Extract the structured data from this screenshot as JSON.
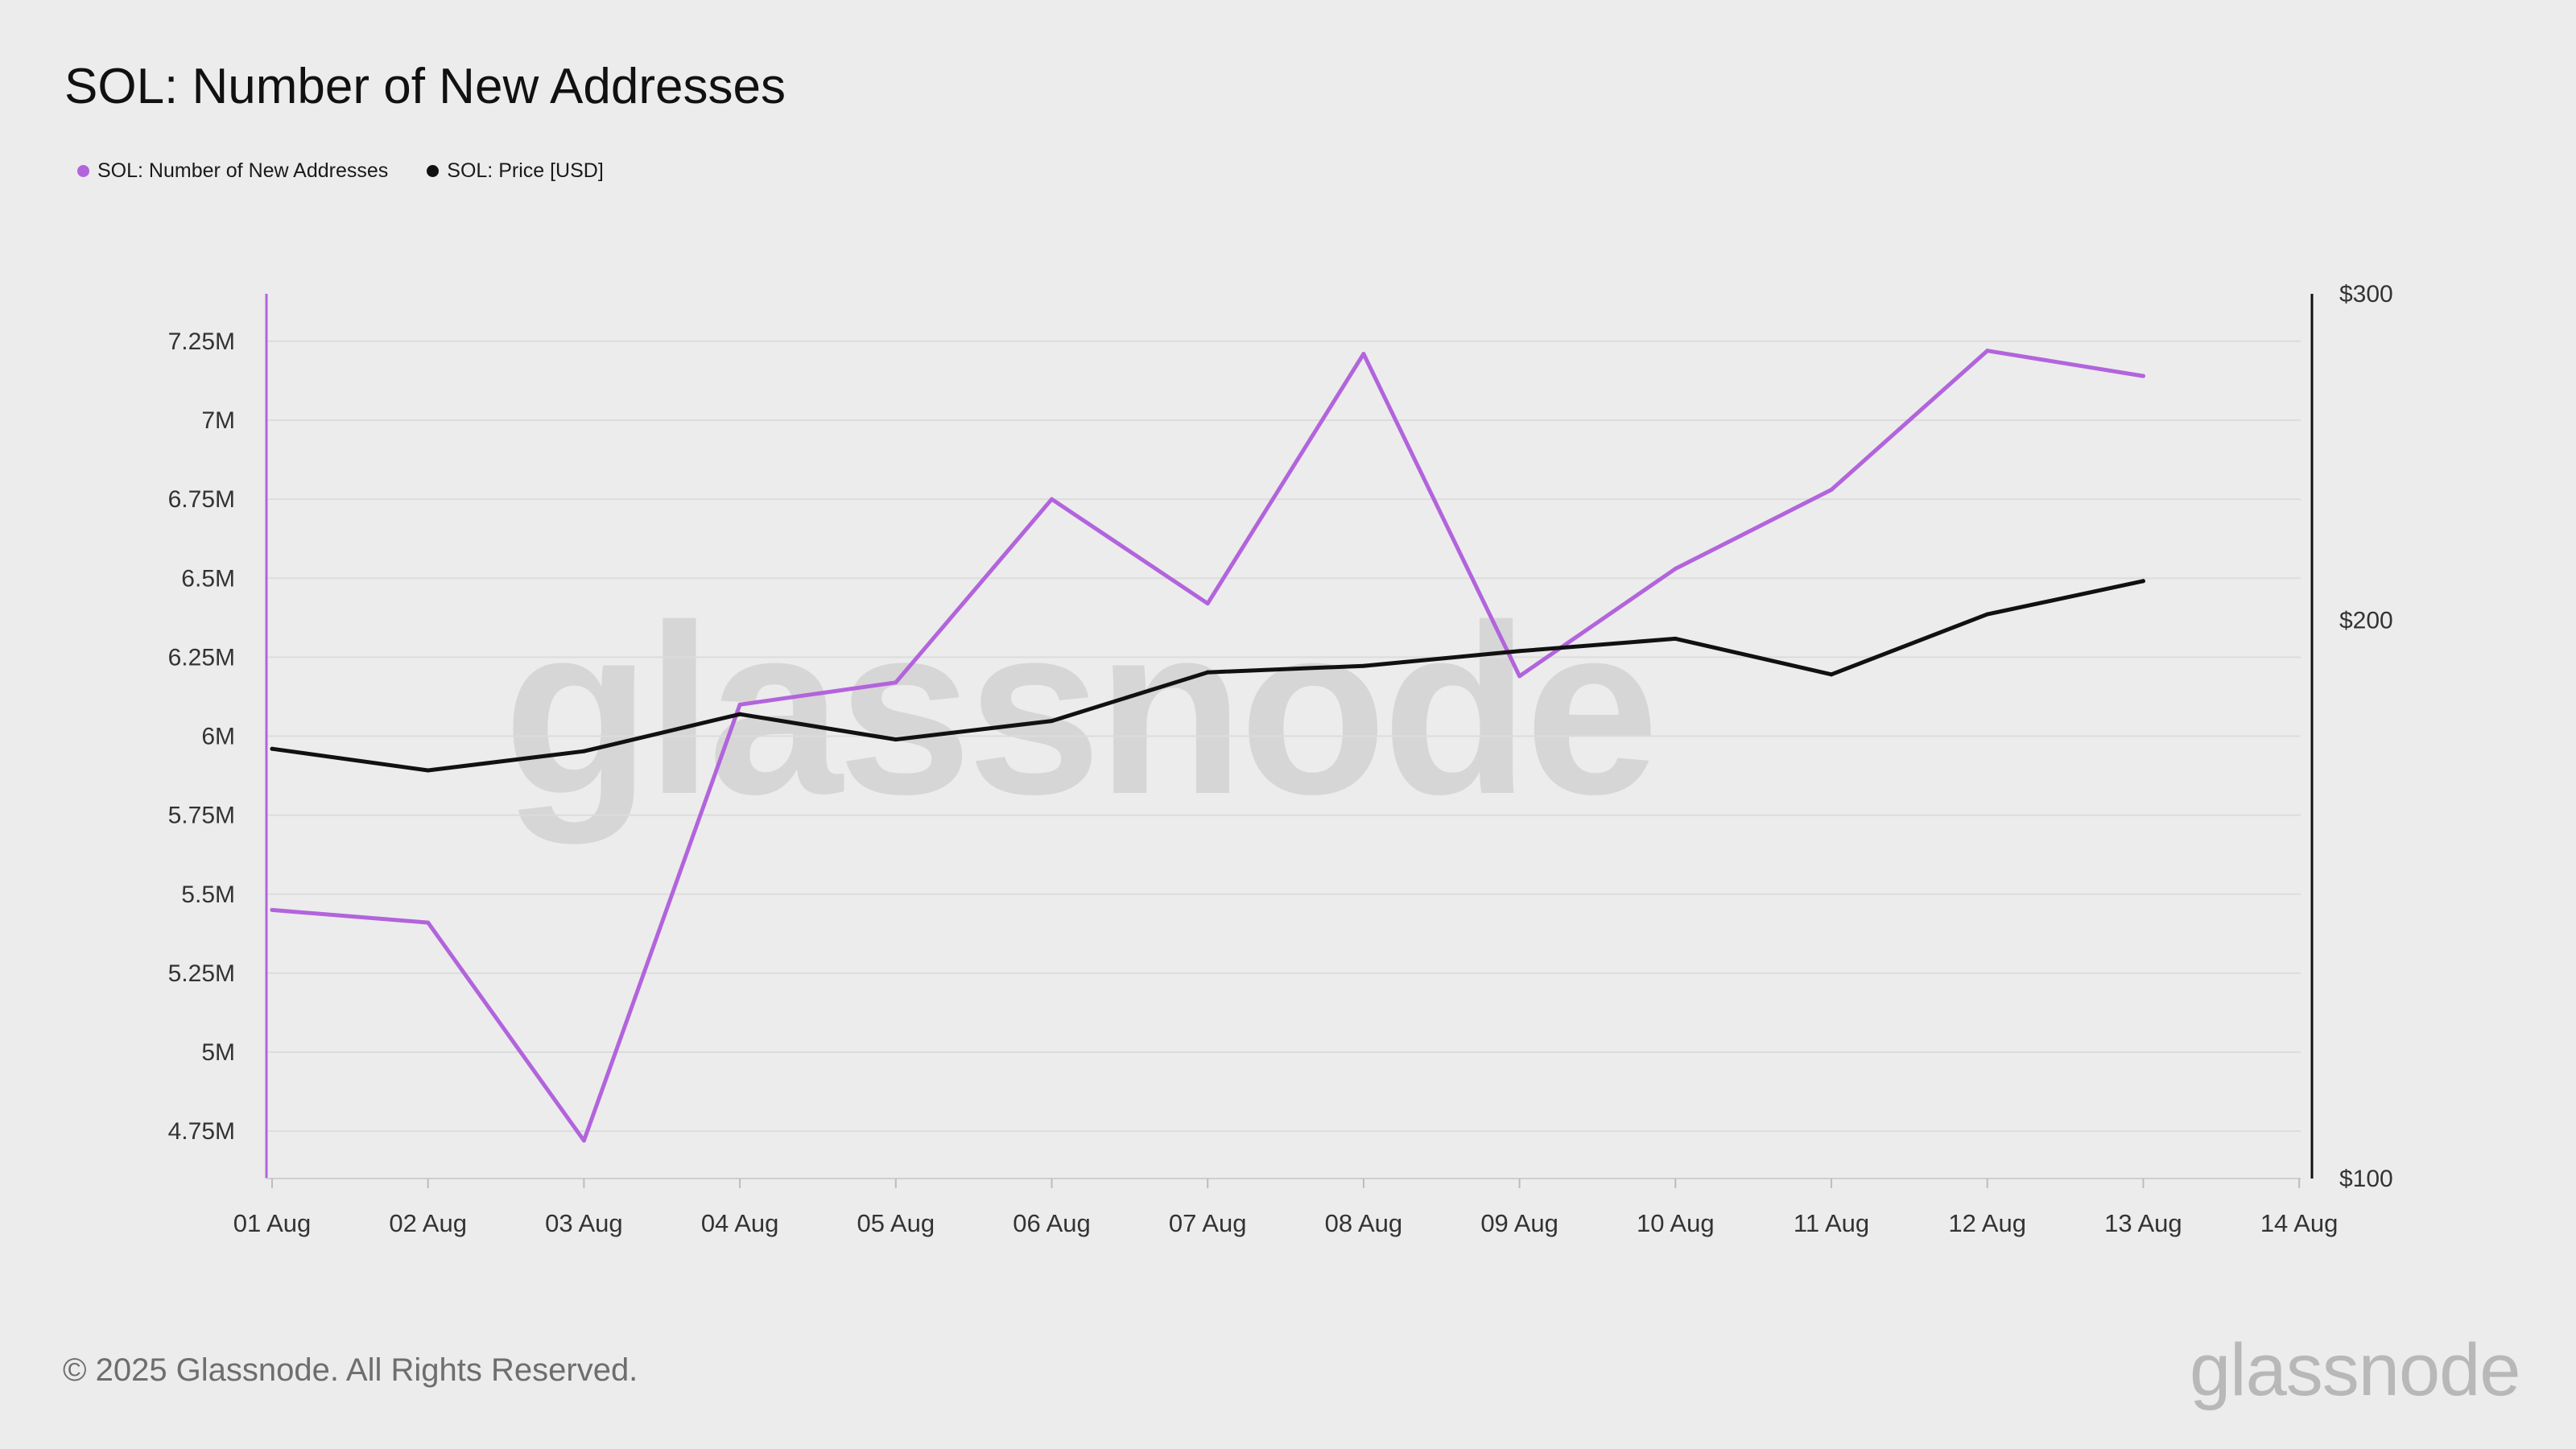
{
  "page": {
    "title": "SOL: Number of New Addresses",
    "footer": "© 2025 Glassnode. All Rights Reserved.",
    "brand": "glassnode",
    "watermark": "glassnode"
  },
  "legend": [
    {
      "label": "SOL: Number of New Addresses",
      "color": "#b264dc"
    },
    {
      "label": "SOL: Price [USD]",
      "color": "#111111"
    }
  ],
  "chart_data": {
    "type": "line",
    "title": "SOL: Number of New Addresses",
    "categories": [
      "01 Aug",
      "02 Aug",
      "03 Aug",
      "04 Aug",
      "05 Aug",
      "06 Aug",
      "07 Aug",
      "08 Aug",
      "09 Aug",
      "10 Aug",
      "11 Aug",
      "12 Aug",
      "13 Aug",
      "14 Aug"
    ],
    "series": [
      {
        "name": "SOL: Number of New Addresses",
        "axis": "left",
        "color": "#b264dc",
        "values": [
          5.45,
          5.41,
          4.72,
          6.1,
          6.17,
          6.75,
          6.42,
          7.21,
          6.19,
          6.53,
          6.78,
          7.22,
          7.14,
          null
        ]
      },
      {
        "name": "SOL: Price [USD]",
        "axis": "right",
        "color": "#111111",
        "values": [
          170.5,
          166.0,
          170.0,
          178.0,
          172.5,
          176.5,
          187.5,
          189.0,
          192.5,
          195.5,
          187.0,
          201.5,
          210.0,
          null
        ]
      }
    ],
    "y_left": {
      "ticks": [
        4.75,
        5,
        5.25,
        5.5,
        5.75,
        6,
        6.25,
        6.5,
        6.75,
        7,
        7.25
      ],
      "tick_labels": [
        "4.75M",
        "5M",
        "5.25M",
        "5.5M",
        "5.75M",
        "6M",
        "6.25M",
        "6.5M",
        "6.75M",
        "7M",
        "7.25M"
      ],
      "range": [
        4.6,
        7.4
      ],
      "unit": "M"
    },
    "y_right": {
      "ticks": [
        100,
        200,
        300
      ],
      "tick_labels": [
        "$100",
        "$200",
        "$300"
      ],
      "scale": "log",
      "range": [
        100,
        300
      ]
    },
    "grid": true,
    "legend_position": "top-left"
  }
}
